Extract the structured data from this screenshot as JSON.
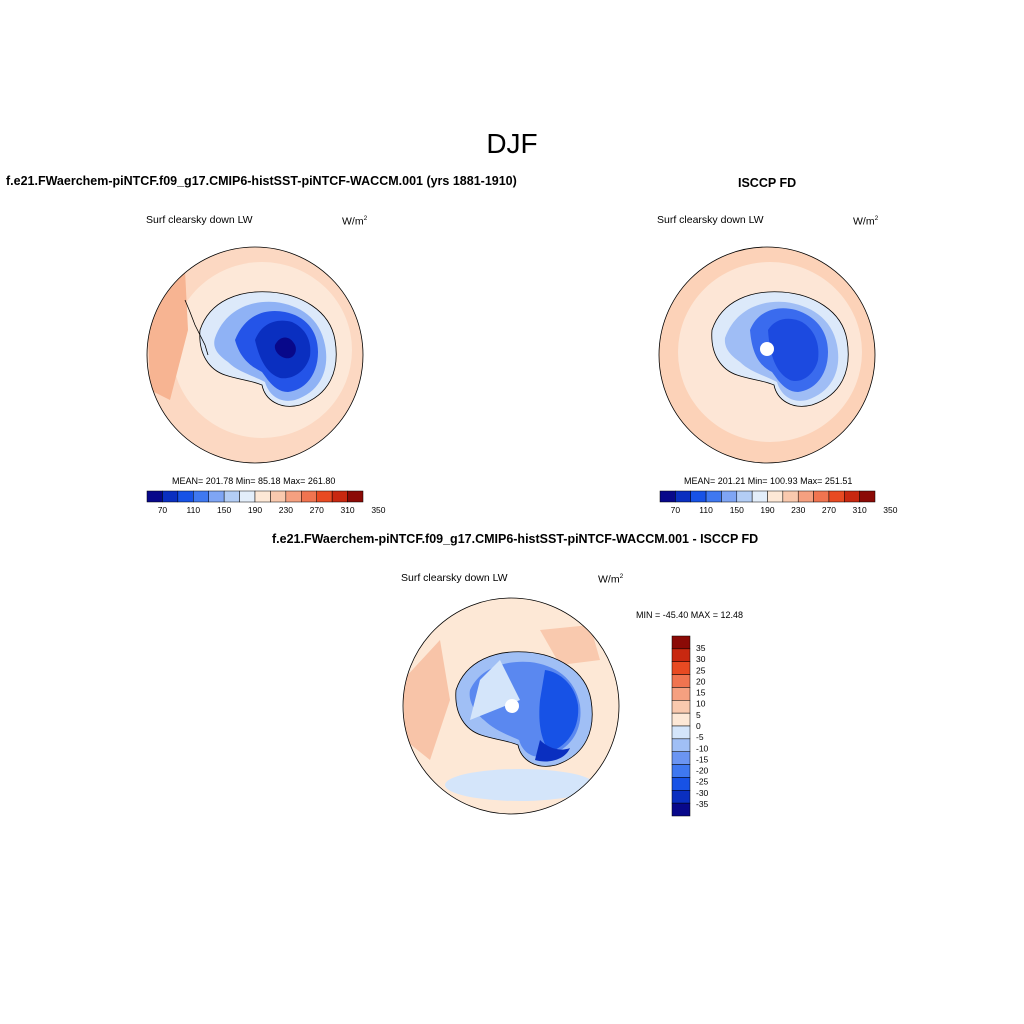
{
  "title": "DJF",
  "panels": [
    {
      "id": "model",
      "header": "f.e21.FWaerchem-piNTCF.f09_g17.CMIP6-histSST-piNTCF-WACCM.001 (yrs 1881-1910)",
      "variable": "Surf clearsky down LW",
      "units_base": "W/m",
      "units_exp": "2",
      "stats": "MEAN= 201.78  Min=  85.18  Max= 261.80",
      "has_hole": false
    },
    {
      "id": "obs",
      "header": "ISCCP FD",
      "variable": "Surf clearsky down LW",
      "units_base": "W/m",
      "units_exp": "2",
      "stats": "MEAN= 201.21  Min= 100.93  Max= 251.51",
      "has_hole": true
    },
    {
      "id": "diff",
      "header": "f.e21.FWaerchem-piNTCF.f09_g17.CMIP6-histSST-piNTCF-WACCM.001 - ISCCP FD",
      "variable": "Surf clearsky down LW",
      "units_base": "W/m",
      "units_exp": "2",
      "stats": "MIN = -45.40 MAX =  12.48",
      "has_hole": true
    }
  ],
  "colorbar_main": {
    "colors": [
      "#08088a",
      "#0a2fc0",
      "#1752e6",
      "#3f78f0",
      "#7fa5f4",
      "#b3cdf5",
      "#e3eefa",
      "#fde8d6",
      "#f9c9ae",
      "#f5a080",
      "#f07450",
      "#e84a22",
      "#c82810",
      "#8b0a06"
    ],
    "labels": [
      "70",
      "110",
      "150",
      "190",
      "230",
      "270",
      "310",
      "350"
    ]
  },
  "colorbar_diff": {
    "colors": [
      "#08088a",
      "#0a2fc0",
      "#1752e6",
      "#3f78f0",
      "#6b95f2",
      "#a0bff5",
      "#d4e5fa",
      "#fde8d6",
      "#f9c9ae",
      "#f5a080",
      "#f07450",
      "#e84a22",
      "#c82810",
      "#8b0a06"
    ],
    "labels": [
      "35",
      "30",
      "25",
      "20",
      "15",
      "10",
      "5",
      "0",
      "-5",
      "-10",
      "-15",
      "-20",
      "-25",
      "-30",
      "-35"
    ]
  }
}
